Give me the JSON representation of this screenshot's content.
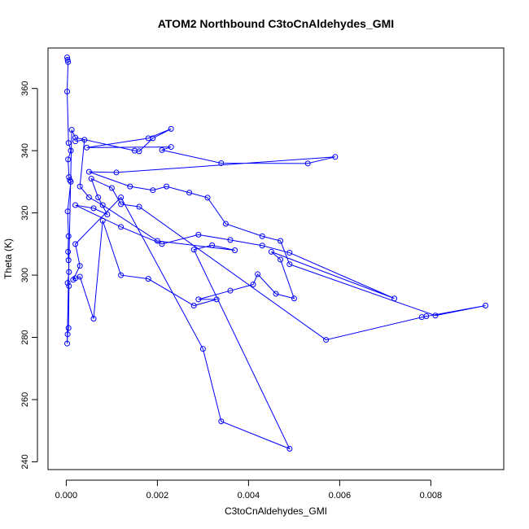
{
  "chart_data": {
    "type": "line",
    "title": "ATOM2 Northbound C3toCnAldehydes_GMI",
    "xlabel": "C3toCnAldehydes_GMI",
    "ylabel": "Theta (K)",
    "xlim": [
      -0.0004,
      0.0096
    ],
    "ylim": [
      237.5,
      373.0
    ],
    "xticks": [
      0.0,
      0.002,
      0.004,
      0.006,
      0.008
    ],
    "xtick_labels": [
      "0.000",
      "0.002",
      "0.004",
      "0.006",
      "0.008"
    ],
    "yticks": [
      240,
      260,
      280,
      300,
      320,
      340,
      360
    ],
    "ytick_labels": [
      "240",
      "260",
      "280",
      "300",
      "320",
      "340",
      "360"
    ],
    "grid": false,
    "series": [
      {
        "color": "#0000ff",
        "marker": "open-circle",
        "points": [
          [
            2e-05,
            370.0
          ],
          [
            3e-05,
            369.2
          ],
          [
            4e-05,
            368.5
          ],
          [
            2e-05,
            359.0
          ],
          [
            5e-05,
            342.5
          ],
          [
            0.0001,
            340.0
          ],
          [
            4e-05,
            337.2
          ],
          [
            6e-05,
            331.5
          ],
          [
            8e-05,
            330.5
          ],
          [
            0.0001,
            330.0
          ],
          [
            3e-05,
            320.5
          ],
          [
            5e-05,
            312.5
          ],
          [
            4e-05,
            307.5
          ],
          [
            5e-05,
            304.8
          ],
          [
            6e-05,
            301.0
          ],
          [
            3e-05,
            297.5
          ],
          [
            6e-05,
            296.5
          ],
          [
            5e-05,
            283.0
          ],
          [
            3e-05,
            281.0
          ],
          [
            2e-05,
            278.0
          ],
          [
            0.00012,
            346.7
          ],
          [
            0.0002,
            344.2
          ],
          [
            0.0015,
            340.0
          ],
          [
            0.0016,
            339.8
          ],
          [
            0.0019,
            344.0
          ],
          [
            0.0023,
            347.0
          ],
          [
            0.0018,
            344.0
          ],
          [
            0.00045,
            341.0
          ],
          [
            0.0023,
            341.2
          ],
          [
            0.0021,
            340.2
          ],
          [
            0.0034,
            336.0
          ],
          [
            0.0053,
            335.9
          ],
          [
            0.0059,
            338.0
          ],
          [
            0.0011,
            333.0
          ],
          [
            0.0005,
            333.2
          ],
          [
            0.0014,
            328.5
          ],
          [
            0.0019,
            327.3
          ],
          [
            0.0022,
            328.5
          ],
          [
            0.0027,
            326.5
          ],
          [
            0.0031,
            324.9
          ],
          [
            0.0035,
            316.5
          ],
          [
            0.0043,
            312.5
          ],
          [
            0.0047,
            311.0
          ],
          [
            0.0049,
            303.5
          ],
          [
            0.0081,
            287.0
          ],
          [
            0.0092,
            290.2
          ],
          [
            0.0078,
            286.5
          ],
          [
            0.0079,
            286.8
          ],
          [
            0.0057,
            279.2
          ],
          [
            0.0016,
            322.0
          ],
          [
            0.0012,
            322.8
          ],
          [
            0.001,
            328.0
          ],
          [
            0.00055,
            331.0
          ],
          [
            0.0007,
            325.0
          ],
          [
            0.0009,
            319.5
          ],
          [
            0.0006,
            321.5
          ],
          [
            0.0002,
            322.5
          ],
          [
            0.0012,
            315.5
          ],
          [
            0.0021,
            310.0
          ],
          [
            0.0029,
            313.0
          ],
          [
            0.0036,
            311.3
          ],
          [
            0.0043,
            309.5
          ],
          [
            0.0049,
            307.2
          ],
          [
            0.0072,
            292.5
          ],
          [
            0.0045,
            307.5
          ],
          [
            0.0047,
            305.0
          ],
          [
            0.005,
            292.5
          ],
          [
            0.0046,
            294.0
          ],
          [
            0.0042,
            300.3
          ],
          [
            0.0041,
            297.0
          ],
          [
            0.0036,
            295.0
          ],
          [
            0.0029,
            292.2
          ],
          [
            0.0033,
            292.2
          ],
          [
            0.0028,
            290.2
          ],
          [
            0.0018,
            298.8
          ],
          [
            0.0012,
            300.0
          ],
          [
            0.0008,
            317.5
          ],
          [
            0.0006,
            286.0
          ],
          [
            0.0003,
            299.5
          ],
          [
            0.0002,
            299.0
          ],
          [
            0.00015,
            298.5
          ],
          [
            0.0003,
            303.0
          ],
          [
            0.0002,
            310.0
          ],
          [
            0.0012,
            325.0
          ],
          [
            0.003,
            276.3
          ],
          [
            0.0034,
            253.0
          ],
          [
            0.0049,
            244.2
          ],
          [
            0.0028,
            308.2
          ],
          [
            0.0032,
            309.6
          ],
          [
            0.0037,
            308.0
          ],
          [
            0.002,
            311.0
          ],
          [
            0.0008,
            322.5
          ],
          [
            0.0005,
            325.0
          ],
          [
            0.0003,
            328.5
          ],
          [
            0.0004,
            343.5
          ],
          [
            0.0002,
            343.0
          ]
        ]
      }
    ]
  }
}
